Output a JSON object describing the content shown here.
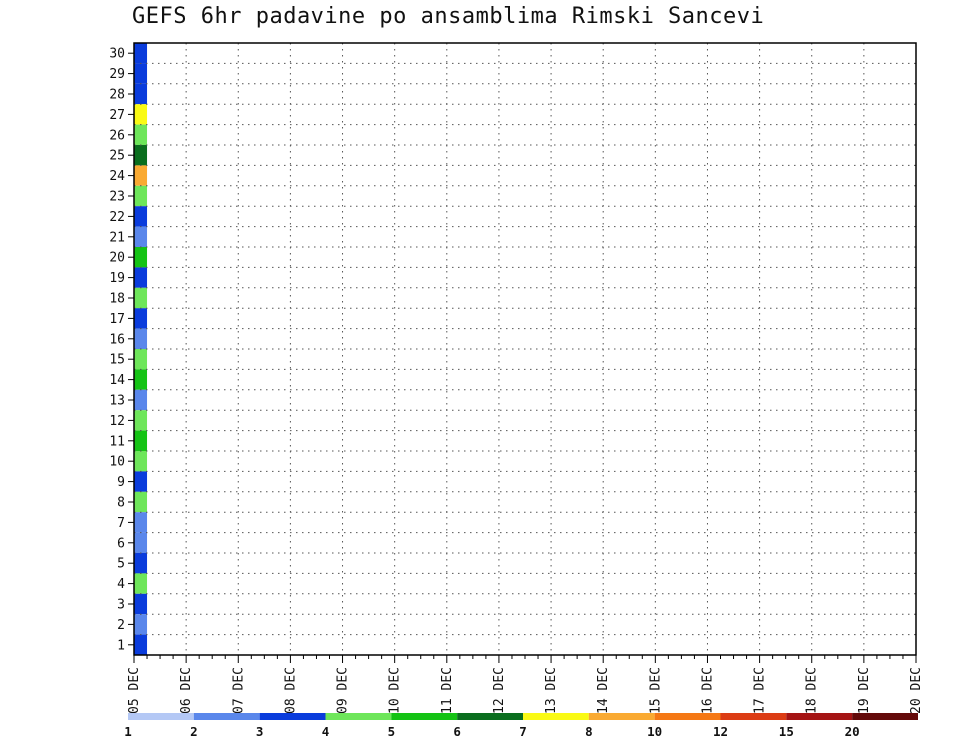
{
  "chart_data": {
    "type": "heatmap",
    "title": "GEFS 6hr padavine po ansamblima Rimski Sancevi",
    "xlabel": "",
    "ylabel": "",
    "x_ticks": [
      "05 DEC",
      "06 DEC",
      "07 DEC",
      "08 DEC",
      "09 DEC",
      "10 DEC",
      "11 DEC",
      "12 DEC",
      "13 DEC",
      "14 DEC",
      "15 DEC",
      "16 DEC",
      "17 DEC",
      "18 DEC",
      "19 DEC",
      "20 DEC"
    ],
    "xlim": [
      0,
      60
    ],
    "y_ticks": [
      1,
      2,
      3,
      4,
      5,
      6,
      7,
      8,
      9,
      10,
      11,
      12,
      13,
      14,
      15,
      16,
      17,
      18,
      19,
      20,
      21,
      22,
      23,
      24,
      25,
      26,
      27,
      28,
      29,
      30
    ],
    "ylim": [
      0,
      30
    ],
    "grid": true,
    "colorbar": {
      "labels": [
        "1",
        "2",
        "3",
        "4",
        "5",
        "6",
        "7",
        "8",
        "10",
        "12",
        "15",
        "20"
      ],
      "bounds": [
        1,
        2,
        3,
        4,
        5,
        6,
        7,
        8,
        10,
        12,
        15,
        20
      ],
      "colors": [
        "#b4c8f5",
        "#5a87eb",
        "#0a3cdc",
        "#6ee65a",
        "#14c314",
        "#0a6e1e",
        "#fafa14",
        "#faaa32",
        "#f57814",
        "#dc3c14",
        "#a51414",
        "#640a0a"
      ]
    },
    "cells": [
      [
        0,
        30,
        2
      ],
      [
        0,
        29,
        2
      ],
      [
        0,
        28,
        2
      ],
      [
        0,
        27,
        6
      ],
      [
        0,
        26,
        3
      ],
      [
        0,
        25,
        5
      ],
      [
        0,
        24,
        7
      ],
      [
        0,
        23,
        3
      ],
      [
        0,
        22,
        2
      ],
      [
        0,
        21,
        1
      ],
      [
        0,
        20,
        4
      ],
      [
        0,
        19,
        2
      ],
      [
        0,
        18,
        3
      ],
      [
        0,
        17,
        2
      ],
      [
        0,
        16,
        1
      ],
      [
        0,
        15,
        3
      ],
      [
        0,
        14,
        4
      ],
      [
        0,
        13,
        1
      ],
      [
        0,
        12,
        3
      ],
      [
        0,
        11,
        4
      ],
      [
        0,
        10,
        3
      ],
      [
        0,
        9,
        2
      ],
      [
        0,
        8,
        3
      ],
      [
        0,
        7,
        1
      ],
      [
        0,
        6,
        1
      ],
      [
        0,
        5,
        2
      ],
      [
        0,
        4,
        3
      ],
      [
        0,
        3,
        2
      ],
      [
        0,
        2,
        1
      ],
      [
        0,
        1,
        2
      ]
    ]
  }
}
